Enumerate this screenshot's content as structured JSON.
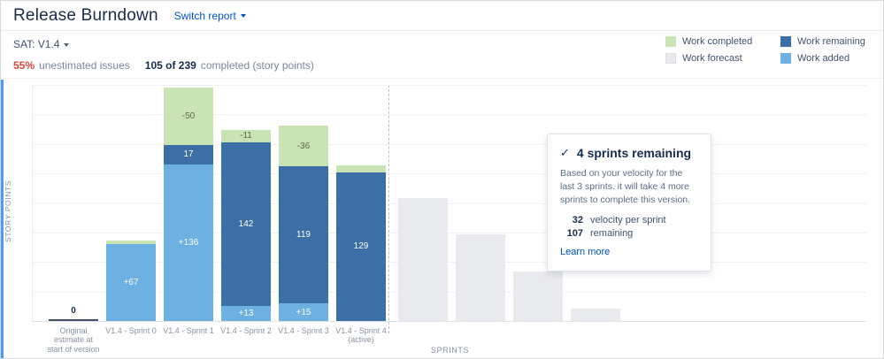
{
  "header": {
    "title": "Release Burndown",
    "switch_report": "Switch report"
  },
  "board": {
    "label": "SAT: V1.4"
  },
  "stats": {
    "unestimated_pct": "55%",
    "unestimated_label": "unestimated issues",
    "completed_bold": "105 of 239",
    "completed_label": "completed (story points)"
  },
  "legend": {
    "items": [
      {
        "label": "Work completed",
        "color": "#c9e3b4"
      },
      {
        "label": "Work remaining",
        "color": "#3c6fa6"
      },
      {
        "label": "Work forecast",
        "color": "#e9eaed",
        "border": "#dcdee2"
      },
      {
        "label": "Work added",
        "color": "#6db0e2"
      }
    ]
  },
  "tooltip": {
    "check": "✓",
    "title": "4 sprints remaining",
    "body": "Based on your velocity for the last 3 sprints. it will take 4 more sprints to complete this version.",
    "velocity_value": "32",
    "velocity_label": "velocity per sprint",
    "remaining_value": "107",
    "remaining_label": "remaining",
    "learn_more": "Learn more"
  },
  "chart_data": {
    "type": "bar",
    "stacked": true,
    "title": "Release Burndown",
    "xlabel": "SPRINTS",
    "ylabel": "STORY POINTS",
    "ylim": [
      0,
      205
    ],
    "grid": true,
    "legend_position": "top-right",
    "categories": [
      "Original estimate at start of version",
      "V1.4 - Sprint 0",
      "V1.4 - Sprint 1",
      "V1.4 - Sprint 2",
      "V1.4 - Sprint 3",
      "V1.4 - Sprint 4 (active)"
    ],
    "bars": [
      {
        "category": "Original estimate at start of version",
        "label": "0",
        "segments": []
      },
      {
        "category": "V1.4 - Sprint 0",
        "segments": [
          {
            "kind": "added",
            "value": 67,
            "label": "+67"
          },
          {
            "kind": "completed",
            "value": 3,
            "label": ""
          }
        ]
      },
      {
        "category": "V1.4 - Sprint 1",
        "segments": [
          {
            "kind": "added",
            "value": 136,
            "label": "+136"
          },
          {
            "kind": "remaining",
            "value": 17,
            "label": "17"
          },
          {
            "kind": "completed",
            "value": 50,
            "label": "-50"
          }
        ]
      },
      {
        "category": "V1.4 - Sprint 2",
        "segments": [
          {
            "kind": "added",
            "value": 13,
            "label": "+13"
          },
          {
            "kind": "remaining",
            "value": 142,
            "label": "142"
          },
          {
            "kind": "completed",
            "value": 11,
            "label": "-11"
          }
        ]
      },
      {
        "category": "V1.4 - Sprint 3",
        "segments": [
          {
            "kind": "added",
            "value": 15,
            "label": "+15"
          },
          {
            "kind": "remaining",
            "value": 119,
            "label": "119"
          },
          {
            "kind": "completed",
            "value": 36,
            "label": "-36"
          }
        ]
      },
      {
        "category": "V1.4 - Sprint 4 (active)",
        "segments": [
          {
            "kind": "remaining",
            "value": 129,
            "label": "129"
          },
          {
            "kind": "completed",
            "value": 6,
            "label": ""
          }
        ]
      }
    ],
    "forecast_bars": [
      107,
      75,
      43,
      11
    ],
    "colors": {
      "completed": "#c9e3b4",
      "remaining": "#3c6fa6",
      "added": "#6db0e2",
      "forecast": "#e9eaed"
    }
  }
}
